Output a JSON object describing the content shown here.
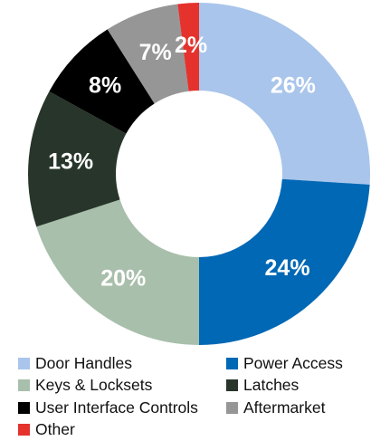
{
  "chart_data": {
    "type": "pie",
    "donut": true,
    "categories": [
      "Door Handles",
      "Power Access",
      "Keys & Locksets",
      "Latches",
      "User Interface Controls",
      "Aftermarket",
      "Other"
    ],
    "values": [
      26,
      24,
      20,
      13,
      8,
      7,
      2
    ],
    "data_labels": [
      "26%",
      "24%",
      "20%",
      "13%",
      "8%",
      "7%",
      "2%"
    ],
    "colors": [
      "#a9c5eb",
      "#0068b5",
      "#a8bfab",
      "#27352a",
      "#000000",
      "#969696",
      "#e5322d"
    ],
    "direction": "clockwise",
    "start": "top",
    "legend": {
      "placement": "bottom",
      "columns": 2,
      "order": [
        "Door Handles",
        "Power Access",
        "Keys & Locksets",
        "Latches",
        "User Interface Controls",
        "Aftermarket",
        "Other"
      ]
    },
    "title": "",
    "xlabel": "",
    "ylabel": ""
  }
}
